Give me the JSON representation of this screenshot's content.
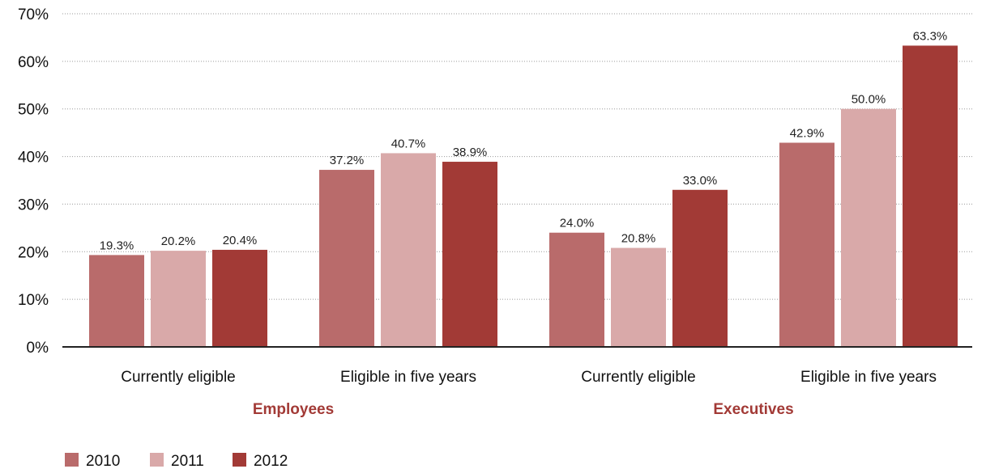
{
  "chart_data": {
    "type": "bar",
    "groups": [
      {
        "label": "Employees",
        "categories": [
          "Currently eligible",
          "Eligible in five years"
        ]
      },
      {
        "label": "Executives",
        "categories": [
          "Currently eligible",
          "Eligible in five years"
        ]
      }
    ],
    "categories": [
      "Currently eligible",
      "Eligible in five years",
      "Currently eligible",
      "Eligible in five years"
    ],
    "series": [
      {
        "name": "2010",
        "color": "#b96b6b",
        "values": [
          19.3,
          37.2,
          24.0,
          42.9
        ]
      },
      {
        "name": "2011",
        "color": "#d9a9a9",
        "values": [
          20.2,
          40.7,
          20.8,
          50.0
        ]
      },
      {
        "name": "2012",
        "color": "#a23a36",
        "values": [
          20.4,
          38.9,
          33.0,
          63.3
        ]
      }
    ],
    "data_labels": [
      [
        "19.3%",
        "37.2%",
        "24.0%",
        "42.9%"
      ],
      [
        "20.2%",
        "40.7%",
        "20.8%",
        "50.0%"
      ],
      [
        "20.4%",
        "38.9%",
        "33.0%",
        "63.3%"
      ]
    ],
    "y_ticks": [
      "0%",
      "10%",
      "20%",
      "30%",
      "40%",
      "50%",
      "60%",
      "70%"
    ],
    "ylim": [
      0,
      70
    ],
    "grid": true,
    "legend_position": "bottom-left",
    "group_label_color": "#a23a36"
  }
}
